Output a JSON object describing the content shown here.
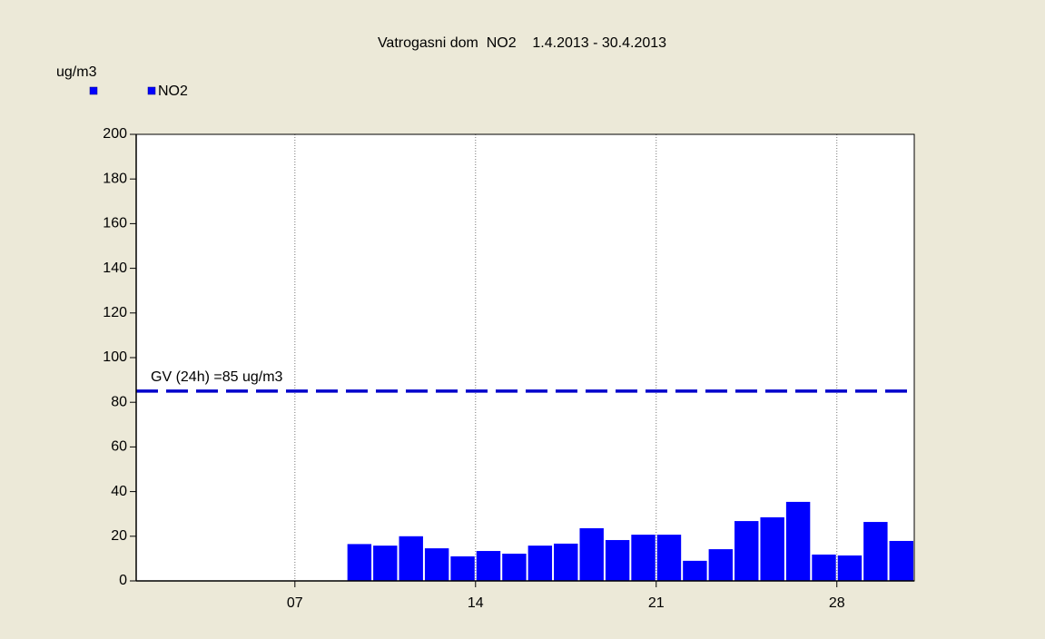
{
  "chart_data": {
    "type": "bar",
    "title": "Vatrogasni dom  NO2    1.4.2013 - 30.4.2013",
    "y_label": "ug/m3",
    "x": [
      1,
      2,
      3,
      4,
      5,
      6,
      7,
      8,
      9,
      10,
      11,
      12,
      13,
      14,
      15,
      16,
      17,
      18,
      19,
      20,
      21,
      22,
      23,
      24,
      25,
      26,
      27,
      28,
      29,
      30
    ],
    "series": [
      {
        "name": "NO2",
        "color": "#0000ff",
        "values": [
          null,
          null,
          null,
          null,
          null,
          null,
          null,
          null,
          16.5,
          15.8,
          20,
          14.6,
          11,
          13.4,
          12.2,
          15.8,
          16.7,
          23.6,
          18.3,
          20.7,
          20.7,
          9,
          14.2,
          26.8,
          28.5,
          35.4,
          11.8,
          11.4,
          26.4,
          17.9
        ]
      }
    ],
    "xlim": [
      0.85,
      31
    ],
    "xticks": [
      {
        "value": 7,
        "label": "07"
      },
      14,
      21,
      28
    ],
    "ylim": [
      0,
      200
    ],
    "yticks": [
      0,
      20,
      40,
      60,
      80,
      100,
      120,
      140,
      160,
      180,
      200
    ],
    "threshold": {
      "value": 85,
      "label": "GV (24h) =85 ug/m3",
      "color": "#0000cc"
    },
    "grid": "x"
  }
}
